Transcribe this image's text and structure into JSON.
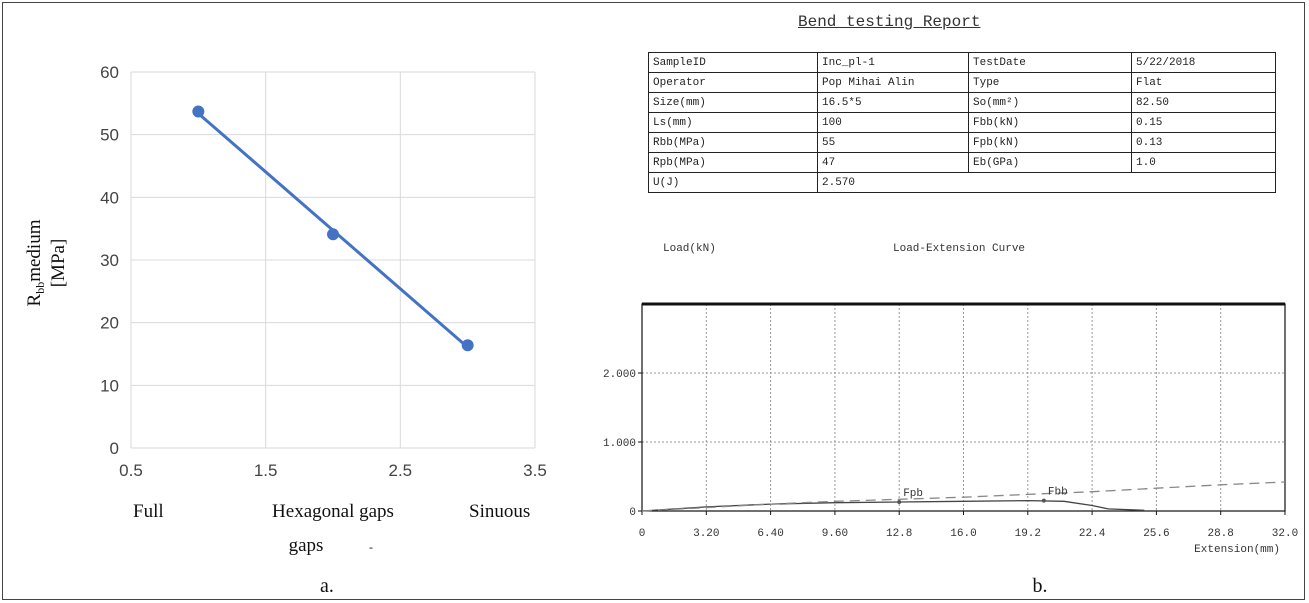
{
  "panel_a": {
    "caption": "a.",
    "chart_data": {
      "type": "scatter",
      "ylabel_main": "R",
      "ylabel_sub": "bb",
      "ylabel_rest": "medium",
      "ylabel_unit": "[MPa]",
      "x_ticks": [
        "0.5",
        "1.5",
        "2.5",
        "3.5"
      ],
      "y_ticks": [
        "0",
        "10",
        "20",
        "30",
        "40",
        "50",
        "60"
      ],
      "xlim": [
        0.5,
        3.5
      ],
      "ylim": [
        0,
        60
      ],
      "category_labels": [
        "Full",
        "Hexagonal gaps",
        "Sinuous"
      ],
      "category_sub_labels": [
        "gaps",
        "-"
      ],
      "grid": true,
      "color": "#4472C4",
      "series": [
        {
          "x": [
            1,
            2,
            3
          ],
          "y": [
            53.7,
            34.1,
            16.4
          ]
        }
      ],
      "trendline": true
    }
  },
  "report": {
    "title": "Bend testing Report",
    "rows": [
      [
        "SampleID",
        "Inc_pl-1",
        "TestDate",
        "5/22/2018"
      ],
      [
        "Operator",
        "Pop Mihai Alin",
        "Type",
        "Flat"
      ],
      [
        "Size(mm)",
        "16.5*5",
        "So(mm²)",
        "82.50"
      ],
      [
        "Ls(mm)",
        "100",
        "Fbb(kN)",
        "0.15"
      ],
      [
        "Rbb(MPa)",
        "55",
        "Fpb(kN)",
        "0.13"
      ],
      [
        "Rpb(MPa)",
        "47",
        "Eb(GPa)",
        "1.0"
      ]
    ],
    "last_row": [
      "U(J)",
      "2.570"
    ]
  },
  "panel_b": {
    "caption": "b.",
    "chart_data": {
      "type": "line",
      "ylabel": "Load(kN)",
      "title": "Load-Extension Curve",
      "xlabel": "Extension(mm)",
      "x_ticks": [
        "0",
        "3.20",
        "6.40",
        "9.60",
        "12.8",
        "16.0",
        "19.2",
        "22.4",
        "25.6",
        "28.8",
        "32.0"
      ],
      "y_ticks": [
        "0",
        "1.000",
        "2.000"
      ],
      "xlim": [
        0,
        32.0
      ],
      "ylim": [
        0,
        3.0
      ],
      "grid": true,
      "annotations": [
        {
          "text": "Fpb",
          "x": 12.8,
          "y": 0.13
        },
        {
          "text": "Fbb",
          "x": 20.0,
          "y": 0.15
        }
      ],
      "series": [
        {
          "style": "solid",
          "x": [
            0,
            3.2,
            6.4,
            9.6,
            12.8,
            16.0,
            19.2,
            21.0,
            22.4,
            23.2,
            25.0
          ],
          "y": [
            0.0,
            0.06,
            0.1,
            0.12,
            0.13,
            0.14,
            0.15,
            0.14,
            0.08,
            0.03,
            0.01
          ]
        },
        {
          "style": "dashed",
          "x": [
            0,
            3.2,
            6.4,
            9.6,
            12.8,
            16.0,
            19.2,
            22.4,
            25.6,
            28.8,
            32.0
          ],
          "y": [
            0.0,
            0.05,
            0.1,
            0.14,
            0.17,
            0.2,
            0.24,
            0.28,
            0.33,
            0.38,
            0.42
          ]
        }
      ]
    }
  }
}
